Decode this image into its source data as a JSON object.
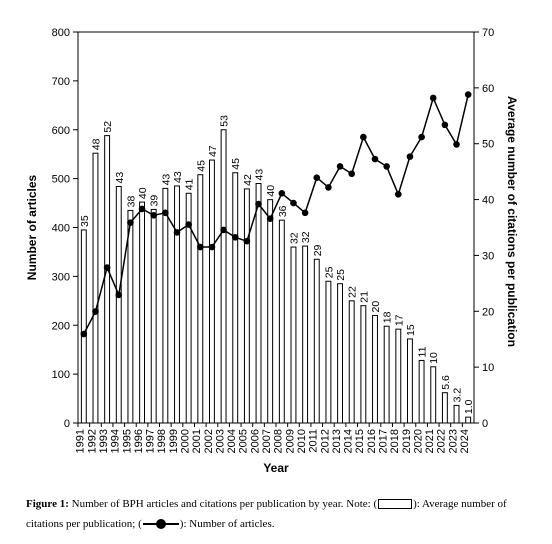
{
  "chart_data": {
    "type": "bar",
    "xlabel": "Year",
    "ylabel": "Number of articles",
    "y2label": "Average number of citations per publication",
    "ylim": [
      0,
      800
    ],
    "y2lim": [
      0,
      70
    ],
    "yticks": [
      0,
      100,
      200,
      300,
      400,
      500,
      600,
      700,
      800
    ],
    "y2ticks": [
      0,
      10,
      20,
      30,
      40,
      50,
      60,
      70
    ],
    "categories": [
      "1991",
      "1992",
      "1993",
      "1994",
      "1995",
      "1996",
      "1997",
      "1998",
      "1999",
      "2000",
      "2001",
      "2002",
      "2003",
      "2004",
      "2005",
      "2006",
      "2007",
      "2008",
      "2009",
      "2010",
      "2011",
      "2012",
      "2013",
      "2014",
      "2015",
      "2016",
      "2017",
      "2018",
      "2019",
      "2020",
      "2021",
      "2022",
      "2023",
      "2024"
    ],
    "series": [
      {
        "kind": "bar",
        "axis": "left",
        "values": [
          395,
          552,
          588,
          484,
          435,
          452,
          437,
          480,
          485,
          470,
          508,
          538,
          600,
          512,
          479,
          490,
          457,
          415,
          360,
          362,
          335,
          290,
          285,
          250,
          240,
          220,
          198,
          192,
          172,
          128,
          115,
          62,
          36,
          12
        ],
        "labels": [
          "35",
          "48",
          "52",
          "43",
          "38",
          "40",
          "39",
          "43",
          "43",
          "41",
          "45",
          "47",
          "53",
          "45",
          "42",
          "43",
          "40",
          "36",
          "32",
          "32",
          "29",
          "25",
          "25",
          "22",
          "21",
          "20",
          "18",
          "17",
          "15",
          "11",
          "10",
          "5.6",
          "3.2",
          "1.0"
        ]
      },
      {
        "kind": "line",
        "axis": "right",
        "marker": "circle",
        "values": [
          182,
          228,
          318,
          262,
          410,
          438,
          425,
          430,
          390,
          406,
          360,
          360,
          395,
          380,
          372,
          448,
          418,
          470,
          450,
          430,
          502,
          482,
          525,
          510,
          585,
          540,
          525,
          468,
          545,
          585,
          665,
          610,
          570,
          672
        ]
      }
    ],
    "colors": {
      "bar_fill": "#ffffff",
      "stroke": "#000000",
      "line": "#000000"
    }
  },
  "caption": {
    "label": "Figure 1:",
    "text_part1": " Number of BPH articles and citations per publication by year. Note: (",
    "text_part2": "): Average number of citations per publication; (",
    "text_part3": "): Number of articles."
  }
}
